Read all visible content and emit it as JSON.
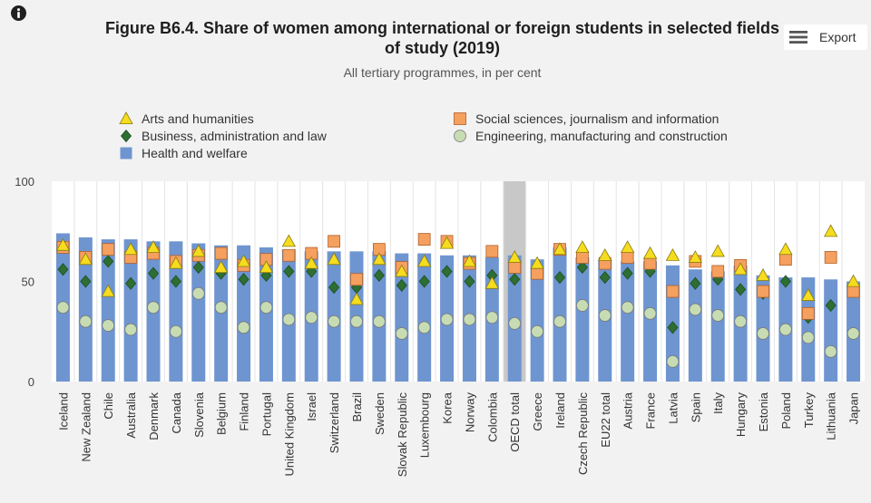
{
  "header": {
    "title": "Figure B6.4. Share of women among international or foreign students in selected fields of study (2019)",
    "subtitle": "All tertiary programmes, in per cent",
    "export_label": "Export"
  },
  "icons": {
    "info": "info-icon",
    "export": "hamburger-menu-icon"
  },
  "colors": {
    "bar": "#6e95d0",
    "bar_highlight": "#c8c8c8",
    "arts": "#f5dc1e",
    "social": "#f5a05f",
    "business": "#2d6e32",
    "engineering": "#c8dcb4"
  },
  "chart_data": {
    "type": "bar",
    "ylim": [
      0,
      100
    ],
    "yticks": [
      0,
      50,
      100
    ],
    "grid": false,
    "legend_position": "top",
    "highlight_category": "OECD total",
    "categories": [
      "Iceland",
      "New Zealand",
      "Chile",
      "Australia",
      "Denmark",
      "Canada",
      "Slovenia",
      "Belgium",
      "Finland",
      "Portugal",
      "United Kingdom",
      "Israel",
      "Switzerland",
      "Brazil",
      "Sweden",
      "Slovak Republic",
      "Luxembourg",
      "Korea",
      "Norway",
      "Colombia",
      "OECD total",
      "Greece",
      "Ireland",
      "Czech Republic",
      "EU22 total",
      "Austria",
      "France",
      "Latvia",
      "Spain",
      "Italy",
      "Hungary",
      "Estonia",
      "Poland",
      "Turkey",
      "Lithuania",
      "Japan"
    ],
    "series": [
      {
        "name": "Health and welfare",
        "kind": "bar",
        "values": [
          74,
          72,
          71,
          71,
          70,
          70,
          69,
          68,
          68,
          67,
          66,
          65,
          65,
          65,
          65,
          64,
          64,
          63,
          63,
          62,
          63,
          61,
          67,
          62,
          61,
          60,
          60,
          58,
          56,
          55,
          58,
          53,
          52,
          52,
          51,
          50
        ]
      },
      {
        "name": "Arts and humanities",
        "kind": "triangle",
        "values": [
          68,
          61,
          45,
          66,
          67,
          59,
          65,
          57,
          60,
          57,
          70,
          59,
          61,
          41,
          61,
          55,
          60,
          69,
          60,
          49,
          62,
          59,
          66,
          67,
          63,
          67,
          64,
          63,
          62,
          65,
          56,
          53,
          66,
          43,
          75,
          50
        ]
      },
      {
        "name": "Social sciences, journalism and information",
        "kind": "square",
        "values": [
          67,
          62,
          66,
          62,
          64,
          60,
          63,
          64,
          58,
          61,
          63,
          64,
          70,
          51,
          66,
          57,
          71,
          70,
          59,
          65,
          57,
          54,
          66,
          62,
          59,
          62,
          59,
          45,
          60,
          55,
          58,
          45,
          61,
          34,
          62,
          45
        ]
      },
      {
        "name": "Business, administration and law",
        "kind": "diamond",
        "values": [
          56,
          50,
          60,
          49,
          54,
          50,
          57,
          54,
          51,
          53,
          55,
          55,
          47,
          47,
          53,
          48,
          50,
          55,
          50,
          53,
          51,
          54,
          52,
          57,
          52,
          54,
          55,
          27,
          49,
          51,
          46,
          44,
          50,
          32,
          38,
          46
        ]
      },
      {
        "name": "Engineering, manufacturing and construction",
        "kind": "circle",
        "values": [
          37,
          30,
          28,
          26,
          37,
          25,
          44,
          37,
          27,
          37,
          31,
          32,
          30,
          30,
          30,
          24,
          27,
          31,
          31,
          32,
          29,
          25,
          30,
          38,
          33,
          37,
          34,
          10,
          36,
          33,
          30,
          24,
          26,
          22,
          15,
          24
        ]
      }
    ],
    "legend": [
      {
        "series": "Arts and humanities",
        "marker": "triangle"
      },
      {
        "series": "Social sciences, journalism and information",
        "marker": "square"
      },
      {
        "series": "Business, administration and law",
        "marker": "diamond"
      },
      {
        "series": "Engineering, manufacturing and construction",
        "marker": "circle"
      },
      {
        "series": "Health and welfare",
        "marker": "bar"
      }
    ]
  }
}
